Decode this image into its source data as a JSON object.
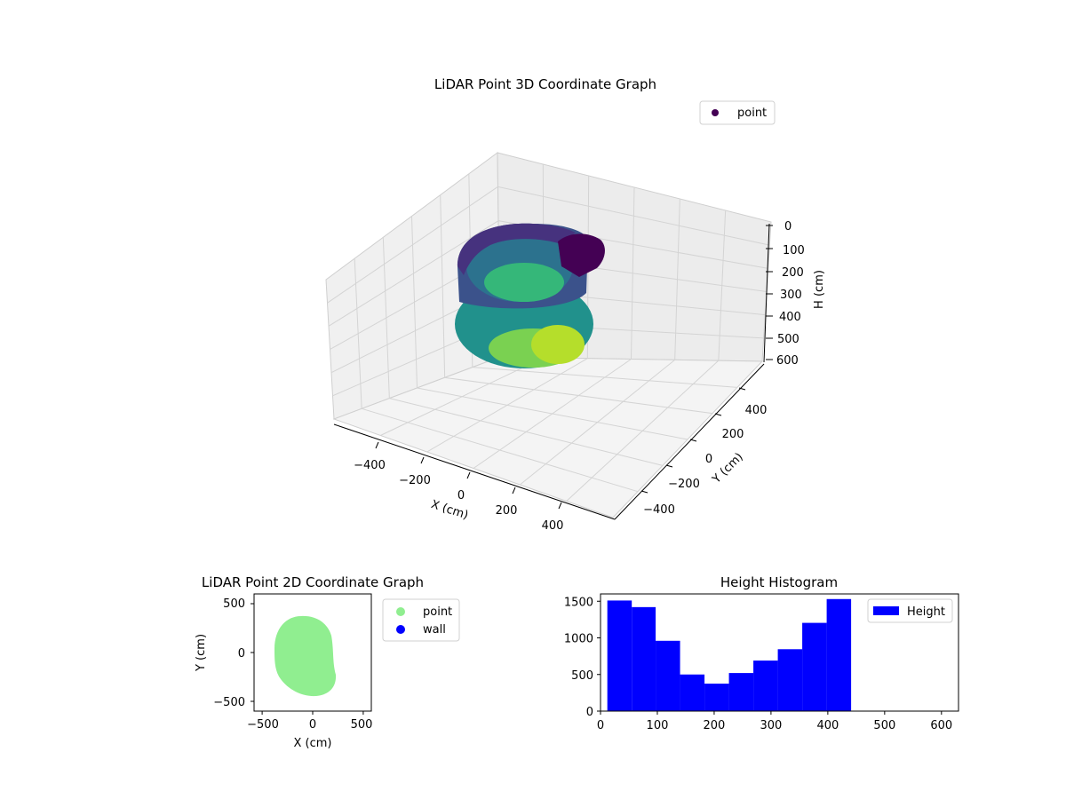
{
  "chart_data": [
    {
      "type": "scatter3d",
      "title": "LiDAR Point 3D Coordinate Graph",
      "xlabel": "X (cm)",
      "ylabel": "Y (cm)",
      "zlabel": "H (cm)",
      "x_ticks": [
        "−400",
        "−200",
        "0",
        "200",
        "400"
      ],
      "y_ticks": [
        "−400",
        "−200",
        "0",
        "200",
        "400"
      ],
      "z_ticks": [
        "0",
        "100",
        "200",
        "300",
        "400",
        "500",
        "600"
      ],
      "z_inverted": true,
      "colormap": "viridis",
      "legend": [
        {
          "label": "point",
          "color": "#440154"
        }
      ],
      "legend_position": "upper right"
    },
    {
      "type": "scatter",
      "title": "LiDAR Point 2D Coordinate Graph",
      "xlabel": "X (cm)",
      "ylabel": "Y (cm)",
      "xlim": [
        -580,
        580
      ],
      "ylim": [
        -600,
        600
      ],
      "x_ticks": [
        "−500",
        "0",
        "500"
      ],
      "y_ticks": [
        "500",
        "0",
        "−500"
      ],
      "series": [
        {
          "name": "point",
          "color": "#90ee90"
        },
        {
          "name": "wall",
          "color": "#0000ff"
        }
      ],
      "legend_position": "outside right"
    },
    {
      "type": "bar",
      "title": "Height Histogram",
      "xlim": [
        0,
        630
      ],
      "ylim": [
        0,
        1600
      ],
      "x_ticks": [
        "0",
        "100",
        "200",
        "300",
        "400",
        "500",
        "600"
      ],
      "y_ticks": [
        "0",
        "500",
        "1000",
        "1500"
      ],
      "bins": [
        {
          "from": 12,
          "to": 55,
          "count": 1510
        },
        {
          "from": 55,
          "to": 97,
          "count": 1420
        },
        {
          "from": 97,
          "to": 140,
          "count": 960
        },
        {
          "from": 140,
          "to": 183,
          "count": 500
        },
        {
          "from": 183,
          "to": 226,
          "count": 375
        },
        {
          "from": 226,
          "to": 269,
          "count": 520
        },
        {
          "from": 269,
          "to": 312,
          "count": 690
        },
        {
          "from": 312,
          "to": 355,
          "count": 845
        },
        {
          "from": 355,
          "to": 398,
          "count": 1205
        },
        {
          "from": 398,
          "to": 441,
          "count": 1530
        }
      ],
      "color": "#0000ff",
      "legend": [
        {
          "label": "Height",
          "color": "#0000ff"
        }
      ],
      "legend_position": "upper right"
    }
  ]
}
